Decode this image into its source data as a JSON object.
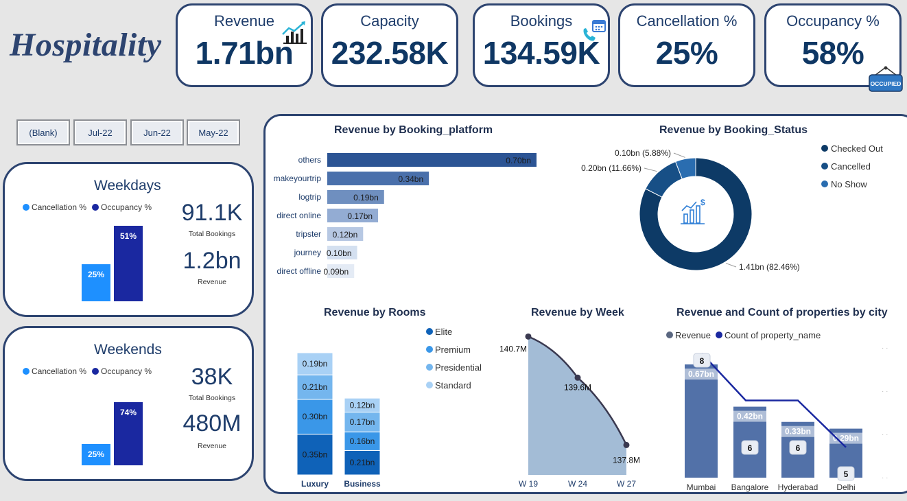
{
  "brand": "Hospitality",
  "kpis": {
    "revenue": {
      "label": "Revenue",
      "value": "1.71bn"
    },
    "capacity": {
      "label": "Capacity",
      "value": "232.58K"
    },
    "bookings": {
      "label": "Bookings",
      "value": "134.59K"
    },
    "cancellation": {
      "label": "Cancellation %",
      "value": "25%"
    },
    "occupancy": {
      "label": "Occupancy %",
      "value": "58%",
      "sign": "OCCUPIED"
    }
  },
  "slicers": [
    "(Blank)",
    "Jul-22",
    "Jun-22",
    "May-22"
  ],
  "weekdays": {
    "title": "Weekdays",
    "legend": [
      "Cancellation %",
      "Occupancy %"
    ],
    "cancellation": 25,
    "occupancy": 51,
    "cancellation_label": "25%",
    "occupancy_label": "51%",
    "total_bookings": "91.1K",
    "total_bookings_label": "Total Bookings",
    "revenue": "1.2bn",
    "revenue_label": "Revenue"
  },
  "weekends": {
    "title": "Weekends",
    "legend": [
      "Cancellation %",
      "Occupancy %"
    ],
    "cancellation": 25,
    "occupancy": 74,
    "cancellation_label": "25%",
    "occupancy_label": "74%",
    "total_bookings": "38K",
    "total_bookings_label": "Total Bookings",
    "revenue": "480M",
    "revenue_label": "Revenue"
  },
  "colors": {
    "navy": "#0f3764",
    "cancel_bar": "#1e90ff",
    "occ_bar": "#1a28a0",
    "checked_out": "#0d3a66",
    "cancelled": "#174f86",
    "no_show": "#2a6db0"
  },
  "chart_data": [
    {
      "type": "bar",
      "title": "Revenue by Booking_platform",
      "orientation": "horizontal",
      "categories": [
        "others",
        "makeyourtrip",
        "logtrip",
        "direct online",
        "tripster",
        "journey",
        "direct offline"
      ],
      "values": [
        0.7,
        0.34,
        0.19,
        0.17,
        0.12,
        0.1,
        0.09
      ],
      "labels": [
        "0.70bn",
        "0.34bn",
        "0.19bn",
        "0.17bn",
        "0.12bn",
        "0.10bn",
        "0.09bn"
      ],
      "colors": [
        "#2c5494",
        "#4a70ab",
        "#6f8fbf",
        "#93acd3",
        "#b7c8e3",
        "#d4e0f0",
        "#e4ebf5"
      ]
    },
    {
      "type": "pie",
      "title": "Revenue by Booking_Status",
      "legend": [
        "Checked Out",
        "Cancelled",
        "No Show"
      ],
      "values": [
        1.41,
        0.2,
        0.1
      ],
      "percents": [
        82.46,
        11.66,
        5.88
      ],
      "labels": [
        "1.41bn (82.46%)",
        "0.20bn (11.66%)",
        "0.10bn (5.88%)"
      ]
    },
    {
      "type": "bar",
      "stacked": true,
      "title": "Revenue by Rooms",
      "categories": [
        "Luxury",
        "Business"
      ],
      "series": [
        {
          "name": "Elite",
          "values": [
            0.35,
            0.21
          ],
          "labels": [
            "0.35bn",
            "0.21bn"
          ]
        },
        {
          "name": "Premium",
          "values": [
            0.3,
            0.16
          ],
          "labels": [
            "0.30bn",
            "0.16bn"
          ]
        },
        {
          "name": "Presidential",
          "values": [
            0.21,
            0.17
          ],
          "labels": [
            "0.21bn",
            "0.17bn"
          ]
        },
        {
          "name": "Standard",
          "values": [
            0.19,
            0.12
          ],
          "labels": [
            "0.19bn",
            "0.12bn"
          ]
        }
      ],
      "colors": [
        "#0f62b8",
        "#3a97e8",
        "#74b6ee",
        "#a9d1f5"
      ]
    },
    {
      "type": "area",
      "title": "Revenue by Week",
      "x": [
        "W 19",
        "W 24",
        "W 27"
      ],
      "values": [
        140.7,
        139.6,
        137.8
      ],
      "labels": [
        "140.7M",
        "139.6M",
        "137.8M"
      ],
      "ylim": [
        137.0,
        141.0
      ]
    },
    {
      "type": "bar",
      "title": "Revenue and Count of properties by city",
      "legend": [
        "Revenue",
        "Count of property_name"
      ],
      "categories": [
        "Mumbai",
        "Bangalore",
        "Hyderabad",
        "Delhi"
      ],
      "series": [
        {
          "name": "Revenue",
          "values": [
            0.67,
            0.42,
            0.33,
            0.29
          ],
          "labels": [
            "0.67bn",
            "0.42bn",
            "0.33bn",
            "0.29bn"
          ]
        },
        {
          "name": "Count of property_name",
          "values": [
            8,
            6,
            6,
            5
          ],
          "labels": [
            "8",
            "6",
            "6",
            "5"
          ]
        }
      ]
    }
  ]
}
